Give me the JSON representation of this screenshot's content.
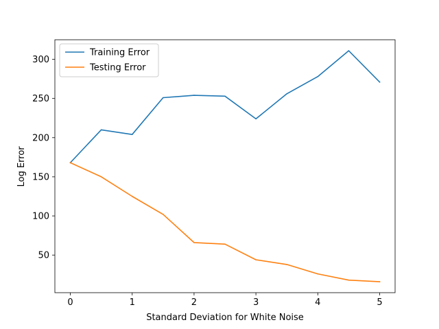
{
  "chart_data": {
    "type": "line",
    "title": "",
    "xlabel": "Standard Deviation for White Noise",
    "ylabel": "Log Error",
    "x": [
      0,
      0.5,
      1,
      1.5,
      2,
      2.5,
      3,
      3.5,
      4,
      4.5,
      5
    ],
    "xlim": [
      -0.25,
      5.25
    ],
    "ylim": [
      2,
      325
    ],
    "xticks": [
      0,
      1,
      2,
      3,
      4,
      5
    ],
    "yticks": [
      50,
      100,
      150,
      200,
      250,
      300
    ],
    "grid": false,
    "legend_position": "upper left",
    "series": [
      {
        "name": "Training Error",
        "color": "#1f77b4",
        "values": [
          168,
          210,
          204,
          251,
          254,
          253,
          224,
          256,
          278,
          311,
          271
        ]
      },
      {
        "name": "Testing Error",
        "color": "#ff7f0e",
        "values": [
          168,
          150,
          125,
          102,
          66,
          64,
          44,
          38,
          26,
          18,
          16
        ]
      }
    ]
  }
}
